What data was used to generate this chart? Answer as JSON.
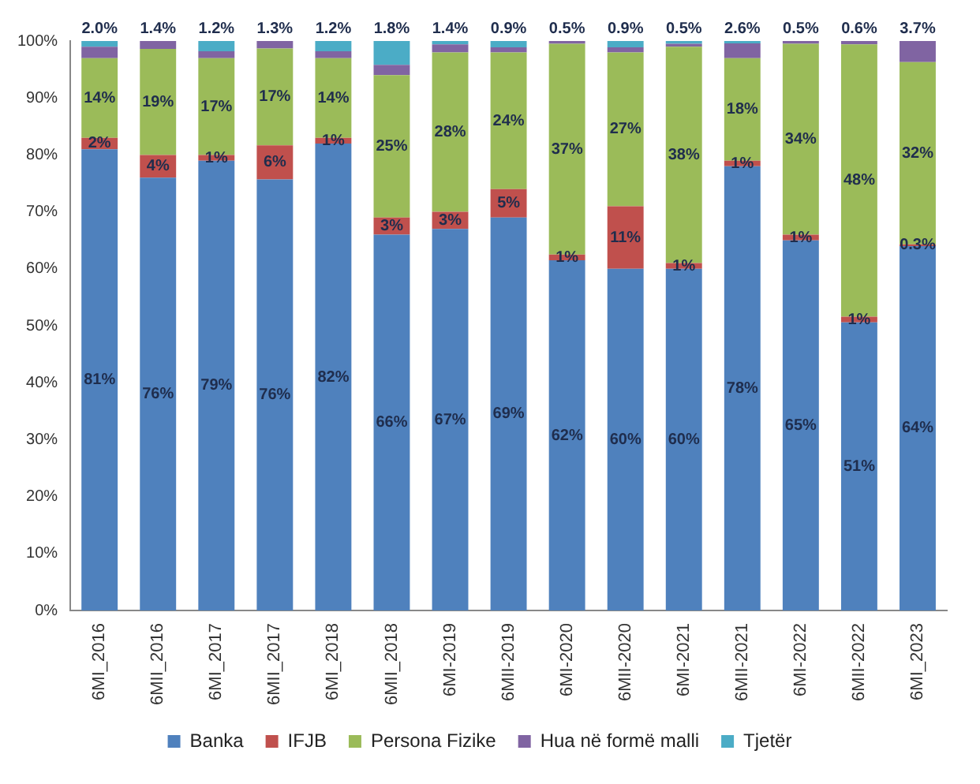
{
  "chart_data": {
    "type": "bar",
    "stacked": true,
    "categories": [
      "6MI_2016",
      "6MII_2016",
      "6MI_2017",
      "6MII_2017",
      "6MI_2018",
      "6MII_2018",
      "6MI-2019",
      "6MII-2019",
      "6MI-2020",
      "6MII-2020",
      "6MI-2021",
      "6MII-2021",
      "6MI-2022",
      "6MII-2022",
      "6MI_2023"
    ],
    "ylim": [
      0,
      100
    ],
    "yticks": [
      {
        "value": 0,
        "label": "0%"
      },
      {
        "value": 10,
        "label": "10%"
      },
      {
        "value": 20,
        "label": "20%"
      },
      {
        "value": 30,
        "label": "30%"
      },
      {
        "value": 40,
        "label": "40%"
      },
      {
        "value": 50,
        "label": "50%"
      },
      {
        "value": 60,
        "label": "60%"
      },
      {
        "value": 70,
        "label": "70%"
      },
      {
        "value": 80,
        "label": "80%"
      },
      {
        "value": 90,
        "label": "90%"
      },
      {
        "value": 100,
        "label": "100%"
      }
    ],
    "legend": "bottom",
    "grid": false,
    "series": [
      {
        "name": "Banka",
        "color": "#4f81bd",
        "values": [
          81,
          76,
          79,
          75.7,
          82,
          66,
          67,
          69,
          61.5,
          60,
          60,
          78,
          65,
          50.6,
          64
        ],
        "value_labels": [
          "81%",
          "76%",
          "79%",
          "76%",
          "82%",
          "66%",
          "67%",
          "69%",
          "62%",
          "60%",
          "60%",
          "78%",
          "65%",
          "51%",
          "64%"
        ]
      },
      {
        "name": "IFJB",
        "color": "#c0504d",
        "values": [
          2,
          4,
          1,
          6,
          1,
          3,
          3,
          5,
          1,
          11,
          1,
          1,
          1,
          1,
          0.3
        ],
        "value_labels": [
          "2%",
          "4%",
          "1%",
          "6%",
          "1%",
          "3%",
          "3%",
          "5%",
          "1%",
          "11%",
          "1%",
          "1%",
          "1%",
          "1%",
          "0.3%"
        ]
      },
      {
        "name": "Persona Fizike",
        "color": "#9bbb59",
        "values": [
          14,
          18.6,
          17,
          17,
          14,
          25,
          28,
          24,
          37,
          27,
          38,
          18,
          33.5,
          47.8,
          32
        ],
        "value_labels": [
          "14%",
          "19%",
          "17%",
          "17%",
          "14%",
          "25%",
          "28%",
          "24%",
          "37%",
          "27%",
          "38%",
          "18%",
          "34%",
          "48%",
          "32%"
        ]
      },
      {
        "name": "Hua në formë malli",
        "color": "#8064a2",
        "values": [
          2.0,
          1.4,
          1.2,
          1.3,
          1.2,
          1.8,
          1.4,
          0.9,
          0.5,
          0.9,
          0.5,
          2.6,
          0.5,
          0.6,
          3.7
        ],
        "value_labels": [
          "2.0%",
          "1.4%",
          "1.2%",
          "1.3%",
          "1.2%",
          "1.8%",
          "1.4%",
          "0.9%",
          "0.5%",
          "0.9%",
          "0.5%",
          "2.6%",
          "0.5%",
          "0.6%",
          "3.7%"
        ]
      },
      {
        "name": "Tjetër",
        "color": "#4bacc6",
        "values": [
          1,
          0,
          1.8,
          0,
          1.8,
          4.2,
          0.6,
          1.1,
          0,
          1.1,
          0.5,
          0.4,
          0,
          0,
          0
        ]
      }
    ]
  }
}
